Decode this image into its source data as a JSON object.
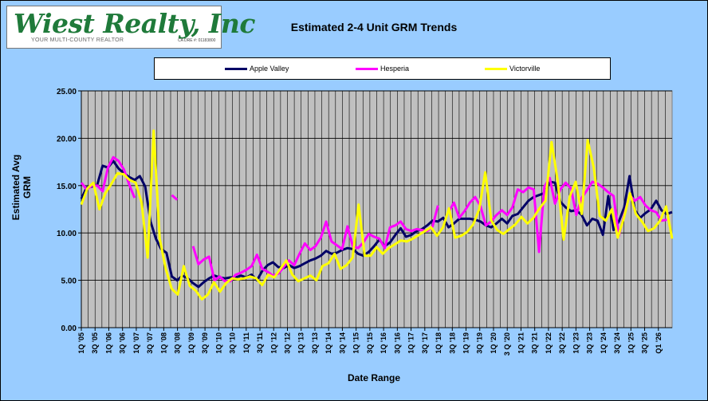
{
  "logo": {
    "name": "Wiest Realty, Inc",
    "tagline": "YOUR MULTI-COUNTY REALTOR",
    "dre": "CA DRE #: 01183800"
  },
  "colors": {
    "apple_valley": "#000066",
    "hesperia": "#ff00ff",
    "victorville": "#ffff00",
    "plot_bg": "#c0c0c0",
    "page_bg": "#99ccff"
  },
  "chart_data": {
    "type": "line",
    "title": "Estimated 2-4 Unit GRM Trends",
    "xlabel": "Date Range",
    "ylabel": "Estimated Avg GRM",
    "ylim": [
      0,
      25
    ],
    "yticks": [
      "0.00",
      "5.00",
      "10.00",
      "15.00",
      "20.00",
      "25.00"
    ],
    "xtick_labels": [
      "1Q '05",
      "3Q '05",
      "1Q '06",
      "3Q '06",
      "1Q '07",
      "3Q '07",
      "1Q '08",
      "3Q '08",
      "1Q '09",
      "3Q '09",
      "1Q '10",
      "3Q '10",
      "1Q '11",
      "3Q '11",
      "1Q '12",
      "3Q '12",
      "1Q '13",
      "3Q '13",
      "1Q '14",
      "3Q '14",
      "1Q '15",
      "3Q '15",
      "1Q '16",
      "3Q '16",
      "1Q '17",
      "3Q '17",
      "1Q '18",
      "3Q '18",
      "1Q '19",
      "3Q '19",
      "1Q '20",
      "3 Q '20",
      "1Q '21",
      "3Q '21",
      "1Q '22",
      "3Q '22",
      "1Q '23",
      "3Q '23",
      "1Q '24",
      "3Q '24",
      "1Q '25",
      "3Q '25",
      "Q1 '26"
    ],
    "grid": "horizontal and vertical",
    "legend_position": "top",
    "series": [
      {
        "name": "Apple Valley",
        "values": [
          13.6,
          14.8,
          14.9,
          15.1,
          17.1,
          16.9,
          17.6,
          16.8,
          16.3,
          15.9,
          15.6,
          16.0,
          14.9,
          11.2,
          9.4,
          8.3,
          7.9,
          5.4,
          5.0,
          5.5,
          5.2,
          4.7,
          4.3,
          4.8,
          5.2,
          5.5,
          5.3,
          5.2,
          5.3,
          5.3,
          5.5,
          5.3,
          5.6,
          5.0,
          6.0,
          6.6,
          6.9,
          6.4,
          6.3,
          6.6,
          6.3,
          6.5,
          6.8,
          7.1,
          7.3,
          7.6,
          8.1,
          7.8,
          7.9,
          8.2,
          8.4,
          8.3,
          7.8,
          7.6,
          8.0,
          8.6,
          9.3,
          8.6,
          9.0,
          9.8,
          10.5,
          9.6,
          9.8,
          10.2,
          10.4,
          10.8,
          11.3,
          11.2,
          11.6,
          10.6,
          11.0,
          11.5,
          11.5,
          11.5,
          11.4,
          11.2,
          10.8,
          10.6,
          11.0,
          11.5,
          11.0,
          11.8,
          12.0,
          12.7,
          13.4,
          13.8,
          14.0,
          14.2,
          15.4,
          15.3,
          13.3,
          12.7,
          12.3,
          12.4,
          11.9,
          10.8,
          11.5,
          11.3,
          9.8,
          13.9,
          10.3,
          11.2,
          12.7,
          16.0,
          12.4,
          11.6,
          12.1,
          12.5,
          13.4,
          12.4,
          12.0,
          12.2
        ]
      },
      {
        "name": "Hesperia",
        "values": [
          15.3,
          14.6,
          15.0,
          15.0,
          14.4,
          16.9,
          18.0,
          17.6,
          16.7,
          15.1,
          13.7,
          null,
          null,
          null,
          null,
          null,
          null,
          14.0,
          13.5,
          null,
          null,
          8.6,
          6.7,
          7.2,
          7.5,
          5.0,
          5.4,
          4.9,
          4.9,
          5.6,
          5.8,
          6.1,
          6.5,
          7.7,
          6.2,
          5.9,
          5.5,
          5.7,
          6.4,
          7.1,
          6.6,
          7.8,
          8.9,
          8.2,
          8.6,
          9.5,
          11.2,
          9.1,
          8.7,
          8.3,
          10.7,
          8.6,
          8.4,
          9.0,
          9.9,
          9.6,
          9.4,
          8.4,
          10.6,
          10.8,
          11.2,
          10.4,
          10.2,
          10.4,
          10.3,
          10.2,
          10.7,
          12.9,
          null,
          12.2,
          13.2,
          11.6,
          12.3,
          13.2,
          13.8,
          12.8,
          10.8,
          11.2,
          11.9,
          12.4,
          11.9,
          12.7,
          14.6,
          14.3,
          14.8,
          14.6,
          8.0,
          14.9,
          15.8,
          13.1,
          14.6,
          15.3,
          14.7,
          11.9,
          13.7,
          14.5,
          15.4,
          15.2,
          14.8,
          14.3,
          13.9,
          9.7,
          11.9,
          14.0,
          13.4,
          13.8,
          12.9,
          12.4,
          12.2,
          11.3,
          11.4,
          null
        ]
      },
      {
        "name": "Victorville",
        "values": [
          13.0,
          14.7,
          15.3,
          12.5,
          14.2,
          15.2,
          16.3,
          16.2,
          15.6,
          15.3,
          13.2,
          7.4,
          20.8,
          9.4,
          6.2,
          4.1,
          3.5,
          6.5,
          4.4,
          3.9,
          3.0,
          3.5,
          4.8,
          3.8,
          4.7,
          5.2,
          5.1,
          5.2,
          5.4,
          5.2,
          4.5,
          5.6,
          5.3,
          6.2,
          7.1,
          5.6,
          4.9,
          5.2,
          5.5,
          5.0,
          6.5,
          6.8,
          7.8,
          6.2,
          6.6,
          7.4,
          13.0,
          7.6,
          7.6,
          8.5,
          7.8,
          8.4,
          8.8,
          9.2,
          9.1,
          9.4,
          9.8,
          10.2,
          10.6,
          9.7,
          10.6,
          12.6,
          9.5,
          9.7,
          10.1,
          10.9,
          12.5,
          16.4,
          11.3,
          10.3,
          9.9,
          10.4,
          10.9,
          11.7,
          11.0,
          11.6,
          12.6,
          13.4,
          19.6,
          15.6,
          9.3,
          13.8,
          15.4,
          12.0,
          19.8,
          16.9,
          11.8,
          11.3,
          12.5,
          9.5,
          11.6,
          14.2,
          12.0,
          11.2,
          10.2,
          10.5,
          11.3,
          12.8,
          9.4
        ]
      }
    ]
  }
}
